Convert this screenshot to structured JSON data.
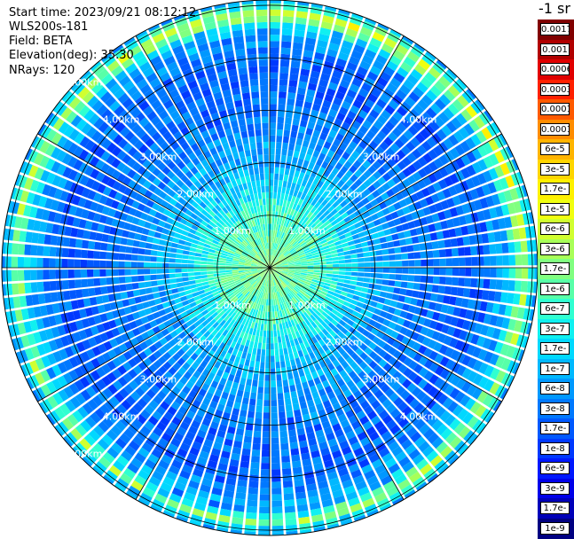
{
  "info": {
    "start_time": "Start time: 2023/09/21 08:12:12",
    "instrument": "WLS200s-181",
    "field": "Field: BETA",
    "elevation": "Elevation(deg): 35.30",
    "nrays": "NRays: 120"
  },
  "colorbar": {
    "title": "-1 sr",
    "labels": [
      "0.0017",
      "0.001",
      "0.0006",
      "0.0003",
      "0.00017",
      "0.0001",
      "6e-5",
      "3e-5",
      "1.7e-5",
      "1e-5",
      "6e-6",
      "3e-6",
      "1.7e-6",
      "1e-6",
      "6e-7",
      "3e-7",
      "1.7e-7",
      "1e-7",
      "6e-8",
      "3e-8",
      "1.7e-8",
      "1e-8",
      "6e-9",
      "3e-9",
      "1.7e-9",
      "1e-9"
    ],
    "colors": [
      "#800000",
      "#b00000",
      "#e00000",
      "#ff2000",
      "#ff5a00",
      "#ff8c00",
      "#ffb400",
      "#ffd500",
      "#fff000",
      "#f0ff10",
      "#d0ff30",
      "#a8ff58",
      "#80ff80",
      "#58ffa8",
      "#30ffd0",
      "#10f0f0",
      "#00d8ff",
      "#00b8ff",
      "#0098ff",
      "#0078ff",
      "#0058ff",
      "#0038ff",
      "#0018ff",
      "#0000e8",
      "#0000b8",
      "#000080"
    ]
  },
  "chart_data": {
    "type": "heatmap",
    "projection": "polar-ppi",
    "title": "",
    "nrays": 120,
    "range_rings_km": [
      1,
      2,
      3,
      4,
      5
    ],
    "range_labels": [
      "1.00km",
      "2.00km",
      "3.00km",
      "4.00km",
      "5.00km"
    ],
    "max_range_km": 5.1,
    "spoke_angles_deg": [
      0,
      30,
      60,
      90,
      120,
      150,
      180,
      210,
      240,
      270,
      300,
      330
    ],
    "range_profile": [
      {
        "range_km": 0.0,
        "beta": 2e-06
      },
      {
        "range_km": 0.5,
        "beta": 1e-06
      },
      {
        "range_km": 1.0,
        "beta": 6e-07
      },
      {
        "range_km": 1.5,
        "beta": 2e-07
      },
      {
        "range_km": 2.0,
        "beta": 8e-08
      },
      {
        "range_km": 3.0,
        "beta": 3e-08
      },
      {
        "range_km": 4.0,
        "beta": 2e-08
      },
      {
        "range_km": 4.6,
        "beta": 1e-07
      },
      {
        "range_km": 4.85,
        "beta": 3e-06
      },
      {
        "range_km": 5.05,
        "beta": 8e-08
      }
    ],
    "colorscale_min": 1e-09,
    "colorscale_max": 0.0017
  }
}
